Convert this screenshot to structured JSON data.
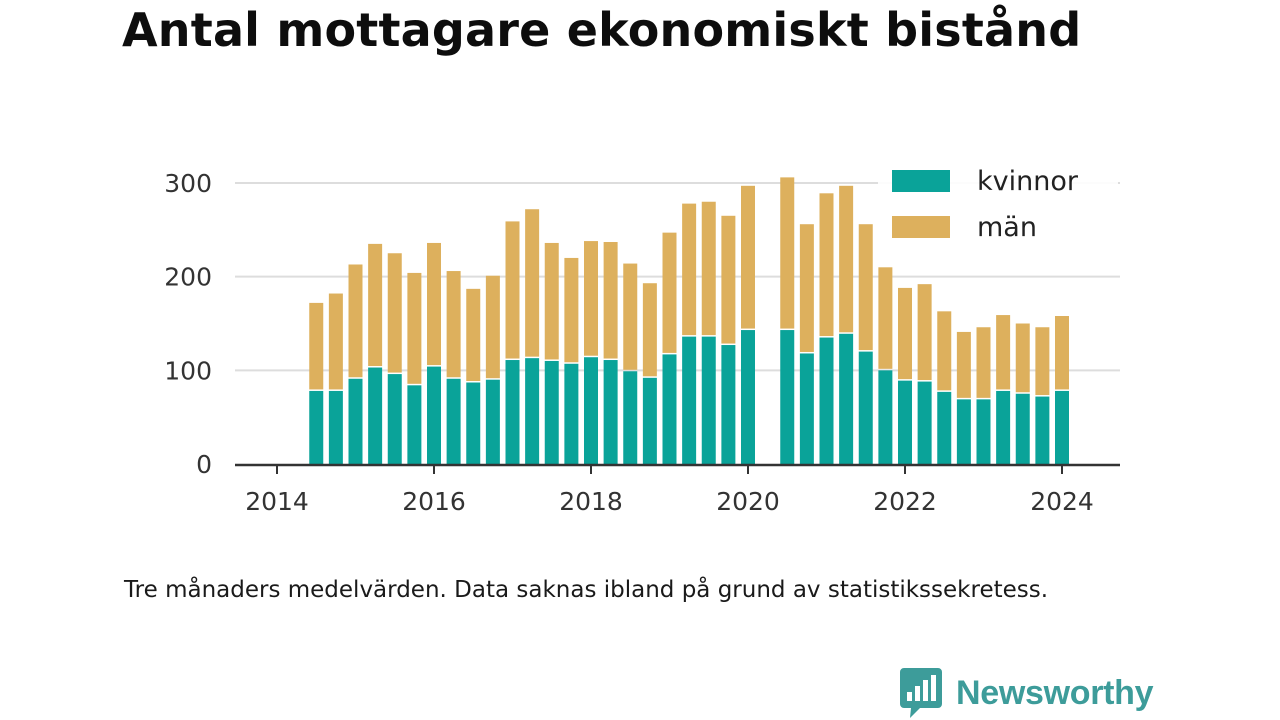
{
  "title": "Antal mottagare ekonomiskt bistånd",
  "caption": "Tre månaders medelvärden. Data saknas ibland på grund av statistikssekretess.",
  "brand": {
    "name": "Newsworthy",
    "icon": "bar-chart-speech-bubble-icon",
    "color": "#3d9c9a"
  },
  "chart_data": {
    "type": "bar",
    "stacked": true,
    "x_axis": {
      "type": "date",
      "range": [
        "2014-01",
        "2025-03"
      ],
      "ticks": [
        "2014",
        "2016",
        "2018",
        "2020",
        "2022",
        "2024"
      ]
    },
    "y_axis": {
      "range": [
        0,
        320
      ],
      "ticks": [
        0,
        100,
        200,
        300
      ]
    },
    "grid": true,
    "legend": {
      "position": "top-right"
    },
    "categories": [
      "2014-07",
      "2014-10",
      "2015-01",
      "2015-04",
      "2015-07",
      "2015-10",
      "2016-01",
      "2016-04",
      "2016-07",
      "2016-10",
      "2017-01",
      "2017-04",
      "2017-07",
      "2017-10",
      "2018-01",
      "2018-04",
      "2018-07",
      "2018-10",
      "2019-01",
      "2019-04",
      "2019-07",
      "2019-10",
      "2020-01",
      "2020-07",
      "2020-10",
      "2021-01",
      "2021-04",
      "2021-07",
      "2021-10",
      "2022-01",
      "2022-04",
      "2022-07",
      "2022-10",
      "2023-01",
      "2023-04",
      "2023-07",
      "2023-10",
      "2024-01"
    ],
    "series": [
      {
        "name": "kvinnor",
        "color": "#0aa399",
        "values": [
          78,
          78,
          91,
          103,
          96,
          84,
          104,
          91,
          87,
          90,
          111,
          113,
          110,
          107,
          114,
          111,
          99,
          92,
          117,
          136,
          136,
          127,
          143,
          143,
          118,
          135,
          139,
          120,
          100,
          89,
          88,
          77,
          69,
          69,
          78,
          75,
          72,
          78
        ]
      },
      {
        "name": "män",
        "color": "#ddb05d",
        "values": [
          94,
          104,
          122,
          132,
          129,
          120,
          132,
          115,
          100,
          111,
          148,
          159,
          126,
          113,
          124,
          126,
          115,
          101,
          130,
          142,
          144,
          138,
          154,
          163,
          138,
          154,
          158,
          136,
          110,
          99,
          104,
          86,
          72,
          77,
          81,
          75,
          74,
          80
        ]
      }
    ]
  }
}
